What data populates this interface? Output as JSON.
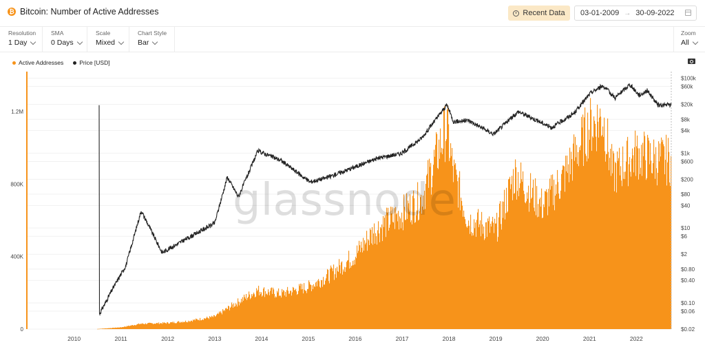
{
  "header": {
    "title": "Bitcoin: Number of Active Addresses",
    "recent_label": "Recent Data",
    "date_from": "03-01-2009",
    "date_to": "30-09-2022",
    "date_arrow": "→"
  },
  "controls": [
    {
      "label": "Resolution",
      "value": "1 Day"
    },
    {
      "label": "SMA",
      "value": "0 Days"
    },
    {
      "label": "Scale",
      "value": "Mixed"
    },
    {
      "label": "Chart Style",
      "value": "Bar"
    }
  ],
  "zoom": {
    "label": "Zoom",
    "value": "All"
  },
  "legend": [
    {
      "name": "Active Addresses",
      "color": "#f7931a"
    },
    {
      "name": "Price [USD]",
      "color": "#222222"
    }
  ],
  "watermark": "glassnode",
  "colors": {
    "accent": "#f7931a",
    "price_line": "#222222",
    "recent_bg": "#fbe8c6"
  },
  "chart_data": {
    "type": "bar",
    "x_ticks": [
      "2010",
      "2011",
      "2012",
      "2013",
      "2014",
      "2015",
      "2016",
      "2017",
      "2018",
      "2019",
      "2020",
      "2021",
      "2022"
    ],
    "left_ticks": [
      "0",
      "400K",
      "800K",
      "1.2M"
    ],
    "left_tick_values": [
      0,
      400000,
      800000,
      1200000
    ],
    "right_ticks": [
      "$100k",
      "$60k",
      "$20k",
      "$8k",
      "$4k",
      "$1k",
      "$600",
      "$200",
      "$80",
      "$40",
      "$10",
      "$6",
      "$2",
      "$0.80",
      "$0.40",
      "$0.10",
      "$0.06",
      "$0.02"
    ],
    "right_tick_values": [
      100000,
      60000,
      20000,
      8000,
      4000,
      1000,
      600,
      200,
      80,
      40,
      10,
      6,
      2,
      0.8,
      0.4,
      0.1,
      0.06,
      0.02
    ],
    "left_scale": "linear",
    "right_scale": "log",
    "left_range": [
      0,
      1420000
    ],
    "right_range": [
      0.02,
      150000
    ],
    "grid": true,
    "legend_position": "top-left",
    "series": [
      {
        "name": "Active Addresses",
        "axis": "left",
        "points": [
          [
            "2009-01-03",
            0
          ],
          [
            "2010-07-01",
            800
          ],
          [
            "2011-01-01",
            10000
          ],
          [
            "2011-06-01",
            30000
          ],
          [
            "2012-01-01",
            35000
          ],
          [
            "2012-06-01",
            45000
          ],
          [
            "2013-01-01",
            70000
          ],
          [
            "2013-06-01",
            140000
          ],
          [
            "2013-12-01",
            220000
          ],
          [
            "2014-06-01",
            200000
          ],
          [
            "2015-01-01",
            240000
          ],
          [
            "2015-06-01",
            300000
          ],
          [
            "2016-01-01",
            420000
          ],
          [
            "2016-06-01",
            560000
          ],
          [
            "2017-01-01",
            660000
          ],
          [
            "2017-06-01",
            740000
          ],
          [
            "2017-12-15",
            1150000
          ],
          [
            "2018-02-01",
            900000
          ],
          [
            "2018-06-01",
            620000
          ],
          [
            "2019-01-01",
            560000
          ],
          [
            "2019-06-01",
            880000
          ],
          [
            "2020-01-01",
            700000
          ],
          [
            "2020-06-01",
            850000
          ],
          [
            "2021-01-01",
            1150000
          ],
          [
            "2021-04-15",
            1200000
          ],
          [
            "2021-07-01",
            880000
          ],
          [
            "2022-01-01",
            1000000
          ],
          [
            "2022-06-01",
            960000
          ],
          [
            "2022-09-30",
            960000
          ]
        ]
      },
      {
        "name": "Price [USD]",
        "axis": "right",
        "points": [
          [
            "2010-07-17",
            0.05
          ],
          [
            "2010-11-01",
            0.25
          ],
          [
            "2011-02-09",
            1
          ],
          [
            "2011-06-08",
            29
          ],
          [
            "2011-11-18",
            2.2
          ],
          [
            "2012-06-01",
            5.3
          ],
          [
            "2013-01-01",
            13.5
          ],
          [
            "2013-04-09",
            230
          ],
          [
            "2013-07-05",
            68
          ],
          [
            "2013-12-04",
            1150
          ],
          [
            "2014-06-01",
            640
          ],
          [
            "2015-01-14",
            170
          ],
          [
            "2015-06-01",
            225
          ],
          [
            "2016-01-01",
            430
          ],
          [
            "2016-06-16",
            720
          ],
          [
            "2017-01-01",
            1000
          ],
          [
            "2017-06-01",
            2500
          ],
          [
            "2017-12-17",
            19500
          ],
          [
            "2018-02-06",
            6900
          ],
          [
            "2018-06-01",
            7500
          ],
          [
            "2018-12-15",
            3200
          ],
          [
            "2019-06-26",
            12900
          ],
          [
            "2020-03-12",
            4800
          ],
          [
            "2020-09-01",
            11500
          ],
          [
            "2021-01-08",
            40000
          ],
          [
            "2021-04-14",
            63500
          ],
          [
            "2021-07-20",
            29800
          ],
          [
            "2021-11-10",
            68000
          ],
          [
            "2022-01-24",
            35000
          ],
          [
            "2022-03-28",
            47000
          ],
          [
            "2022-06-18",
            19000
          ],
          [
            "2022-09-30",
            19400
          ]
        ]
      }
    ]
  }
}
